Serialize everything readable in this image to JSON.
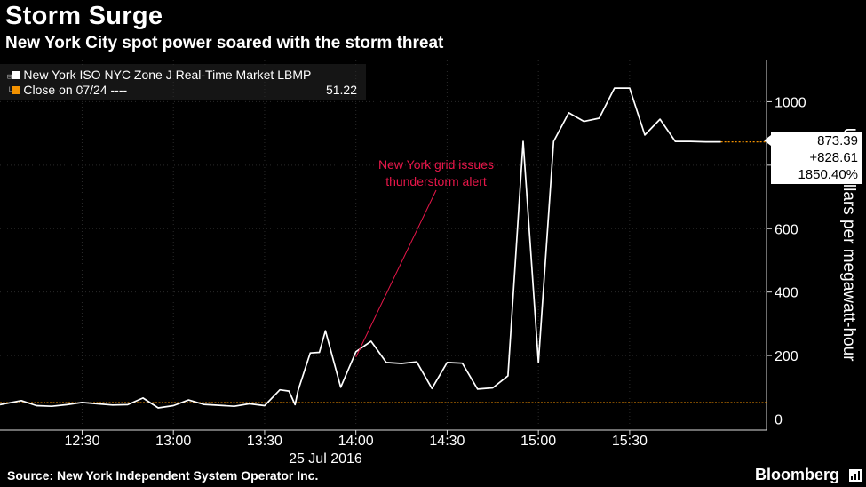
{
  "title": "Storm Surge",
  "subtitle": "New York City spot power soared with the storm threat",
  "legend": {
    "series_label": "New York ISO NYC Zone J Real-Time Market LBMP",
    "close_label": "Close on 07/24 ----",
    "close_value": "51.22",
    "series_color": "#ffffff",
    "close_color": "#f39200"
  },
  "annotation": {
    "line1": "New York grid issues",
    "line2": "thunderstorm alert",
    "color": "#e8174a"
  },
  "callout": {
    "value": "873.39",
    "change": "+828.61",
    "pct": "1850.40%"
  },
  "source": "Source: New York Independent System Operator Inc.",
  "brand": "Bloomberg",
  "chart_data": {
    "type": "line",
    "xlabel": "25 Jul 2016",
    "ylabel": "U.S. dollars per megawatt-hour",
    "ylim": [
      -35,
      1130
    ],
    "yticks": [
      0,
      200,
      400,
      600,
      800,
      1000
    ],
    "ytick_labels": [
      "0",
      "200",
      "400",
      "600",
      "",
      "1000"
    ],
    "xticks": [
      "12:30",
      "13:00",
      "13:30",
      "14:00",
      "14:30",
      "15:00",
      "15:30"
    ],
    "xlim": [
      "12:03",
      "16:15"
    ],
    "reference_line": {
      "name": "Close on 07/24",
      "value": 51.22
    },
    "annotation_point": {
      "x": "14:00",
      "y": 195
    },
    "series": [
      {
        "name": "New York ISO NYC Zone J Real-Time Market LBMP",
        "x": [
          "12:03",
          "12:10",
          "12:15",
          "12:20",
          "12:25",
          "12:30",
          "12:35",
          "12:40",
          "12:45",
          "12:50",
          "12:55",
          "13:00",
          "13:05",
          "13:10",
          "13:15",
          "13:20",
          "13:25",
          "13:30",
          "13:35",
          "13:38",
          "13:40",
          "13:41",
          "13:45",
          "13:48",
          "13:50",
          "13:55",
          "14:00",
          "14:05",
          "14:10",
          "14:15",
          "14:20",
          "14:25",
          "14:30",
          "14:35",
          "14:40",
          "14:45",
          "14:50",
          "14:55",
          "15:00",
          "15:05",
          "15:10",
          "15:15",
          "15:20",
          "15:25",
          "15:30",
          "15:35",
          "15:40",
          "15:45",
          "15:50",
          "15:55",
          "16:00"
        ],
        "values": [
          45,
          58,
          42,
          40,
          45,
          52,
          48,
          44,
          45,
          66,
          35,
          42,
          60,
          46,
          43,
          40,
          48,
          42,
          92,
          88,
          45,
          90,
          208,
          210,
          278,
          100,
          212,
          245,
          178,
          175,
          180,
          96,
          178,
          176,
          94,
          98,
          136,
          875,
          178,
          875,
          965,
          938,
          948,
          1043,
          1043,
          895,
          945,
          875,
          875,
          873.39,
          873.39
        ]
      }
    ]
  }
}
